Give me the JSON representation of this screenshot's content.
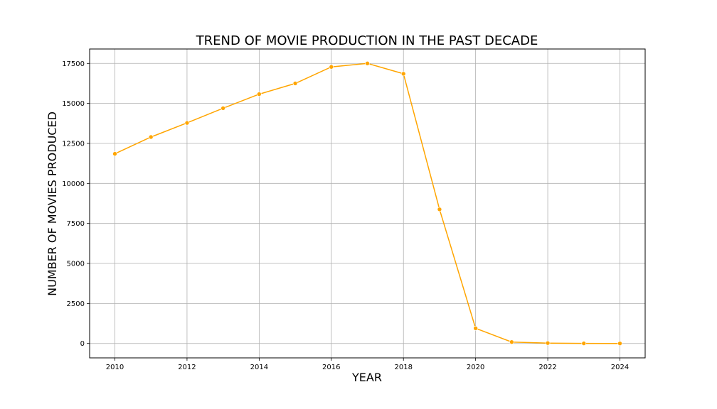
{
  "chart_data": {
    "type": "line",
    "title": "TREND OF MOVIE PRODUCTION IN THE PAST DECADE",
    "xlabel": "YEAR",
    "ylabel": "NUMBER OF MOVIES PRODUCED",
    "x": [
      2010,
      2011,
      2012,
      2013,
      2014,
      2015,
      2016,
      2017,
      2018,
      2019,
      2020,
      2021,
      2022,
      2023,
      2024
    ],
    "series": [
      {
        "values": [
          11850,
          12900,
          13780,
          14700,
          15580,
          16250,
          17280,
          17500,
          16850,
          8380,
          950,
          90,
          25,
          5,
          2
        ],
        "color": "#FFA500"
      }
    ],
    "xlim": [
      2009.3,
      2024.7
    ],
    "ylim": [
      -900,
      18400
    ],
    "xticks": [
      "2010",
      "2012",
      "2014",
      "2016",
      "2018",
      "2020",
      "2022",
      "2024"
    ],
    "yticks": [
      "0",
      "2500",
      "5000",
      "7500",
      "10000",
      "12500",
      "15000",
      "17500"
    ],
    "grid": true,
    "marker": "circle"
  }
}
